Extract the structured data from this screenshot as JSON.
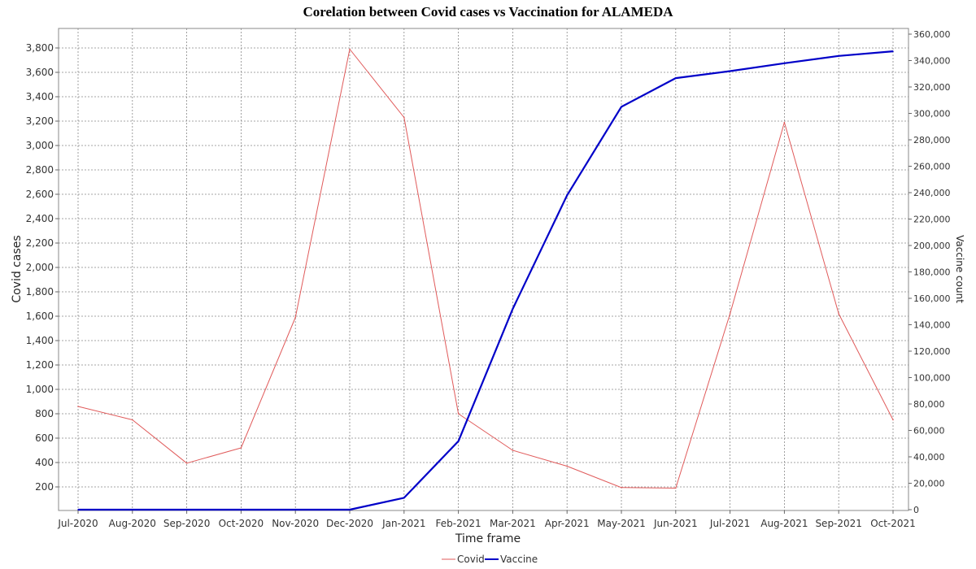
{
  "chart_data": {
    "type": "line",
    "title": "Corelation between Covid cases vs Vaccination for ALAMEDA",
    "xlabel": "Time frame",
    "ylabel": "Covid cases",
    "y2label": "Vaccine count",
    "categories": [
      "Jul-2020",
      "Aug-2020",
      "Sep-2020",
      "Oct-2020",
      "Nov-2020",
      "Dec-2020",
      "Jan-2021",
      "Feb-2021",
      "Mar-2021",
      "Apr-2021",
      "May-2021",
      "Jun-2021",
      "Jul-2021",
      "Aug-2021",
      "Sep-2021",
      "Oct-2021"
    ],
    "ylim": [
      0,
      3800
    ],
    "y2lim": [
      0,
      360000
    ],
    "y_ticks": [
      200,
      400,
      600,
      800,
      1000,
      1200,
      1400,
      1600,
      1800,
      2000,
      2200,
      2400,
      2600,
      2800,
      3000,
      3200,
      3400,
      3600,
      3800
    ],
    "y_tick_labels": [
      "200",
      "400",
      "600",
      "800",
      "1,000",
      "1,200",
      "1,400",
      "1,600",
      "1,800",
      "2,000",
      "2,200",
      "2,400",
      "2,600",
      "2,800",
      "3,000",
      "3,200",
      "3,400",
      "3,600",
      "3,800"
    ],
    "y2_ticks": [
      0,
      20000,
      40000,
      60000,
      80000,
      100000,
      120000,
      140000,
      160000,
      180000,
      200000,
      220000,
      240000,
      260000,
      280000,
      300000,
      320000,
      340000,
      360000
    ],
    "y2_tick_labels": [
      "0",
      "20,000",
      "40,000",
      "60,000",
      "80,000",
      "100,000",
      "120,000",
      "140,000",
      "160,000",
      "180,000",
      "200,000",
      "220,000",
      "240,000",
      "260,000",
      "280,000",
      "300,000",
      "320,000",
      "340,000",
      "360,000"
    ],
    "grid": true,
    "legend_position": "bottom",
    "series": [
      {
        "name": "Covid",
        "axis": "left",
        "color": "#e05a5a",
        "values": [
          860,
          750,
          395,
          520,
          1590,
          3790,
          3230,
          800,
          500,
          370,
          195,
          190,
          1620,
          3190,
          1620,
          750
        ]
      },
      {
        "name": "Vaccine",
        "axis": "right",
        "color": "#0000c8",
        "values": [
          0,
          0,
          0,
          0,
          0,
          0,
          9000,
          51800,
          152000,
          238000,
          305000,
          326700,
          332000,
          338000,
          343500,
          347000
        ]
      }
    ]
  }
}
